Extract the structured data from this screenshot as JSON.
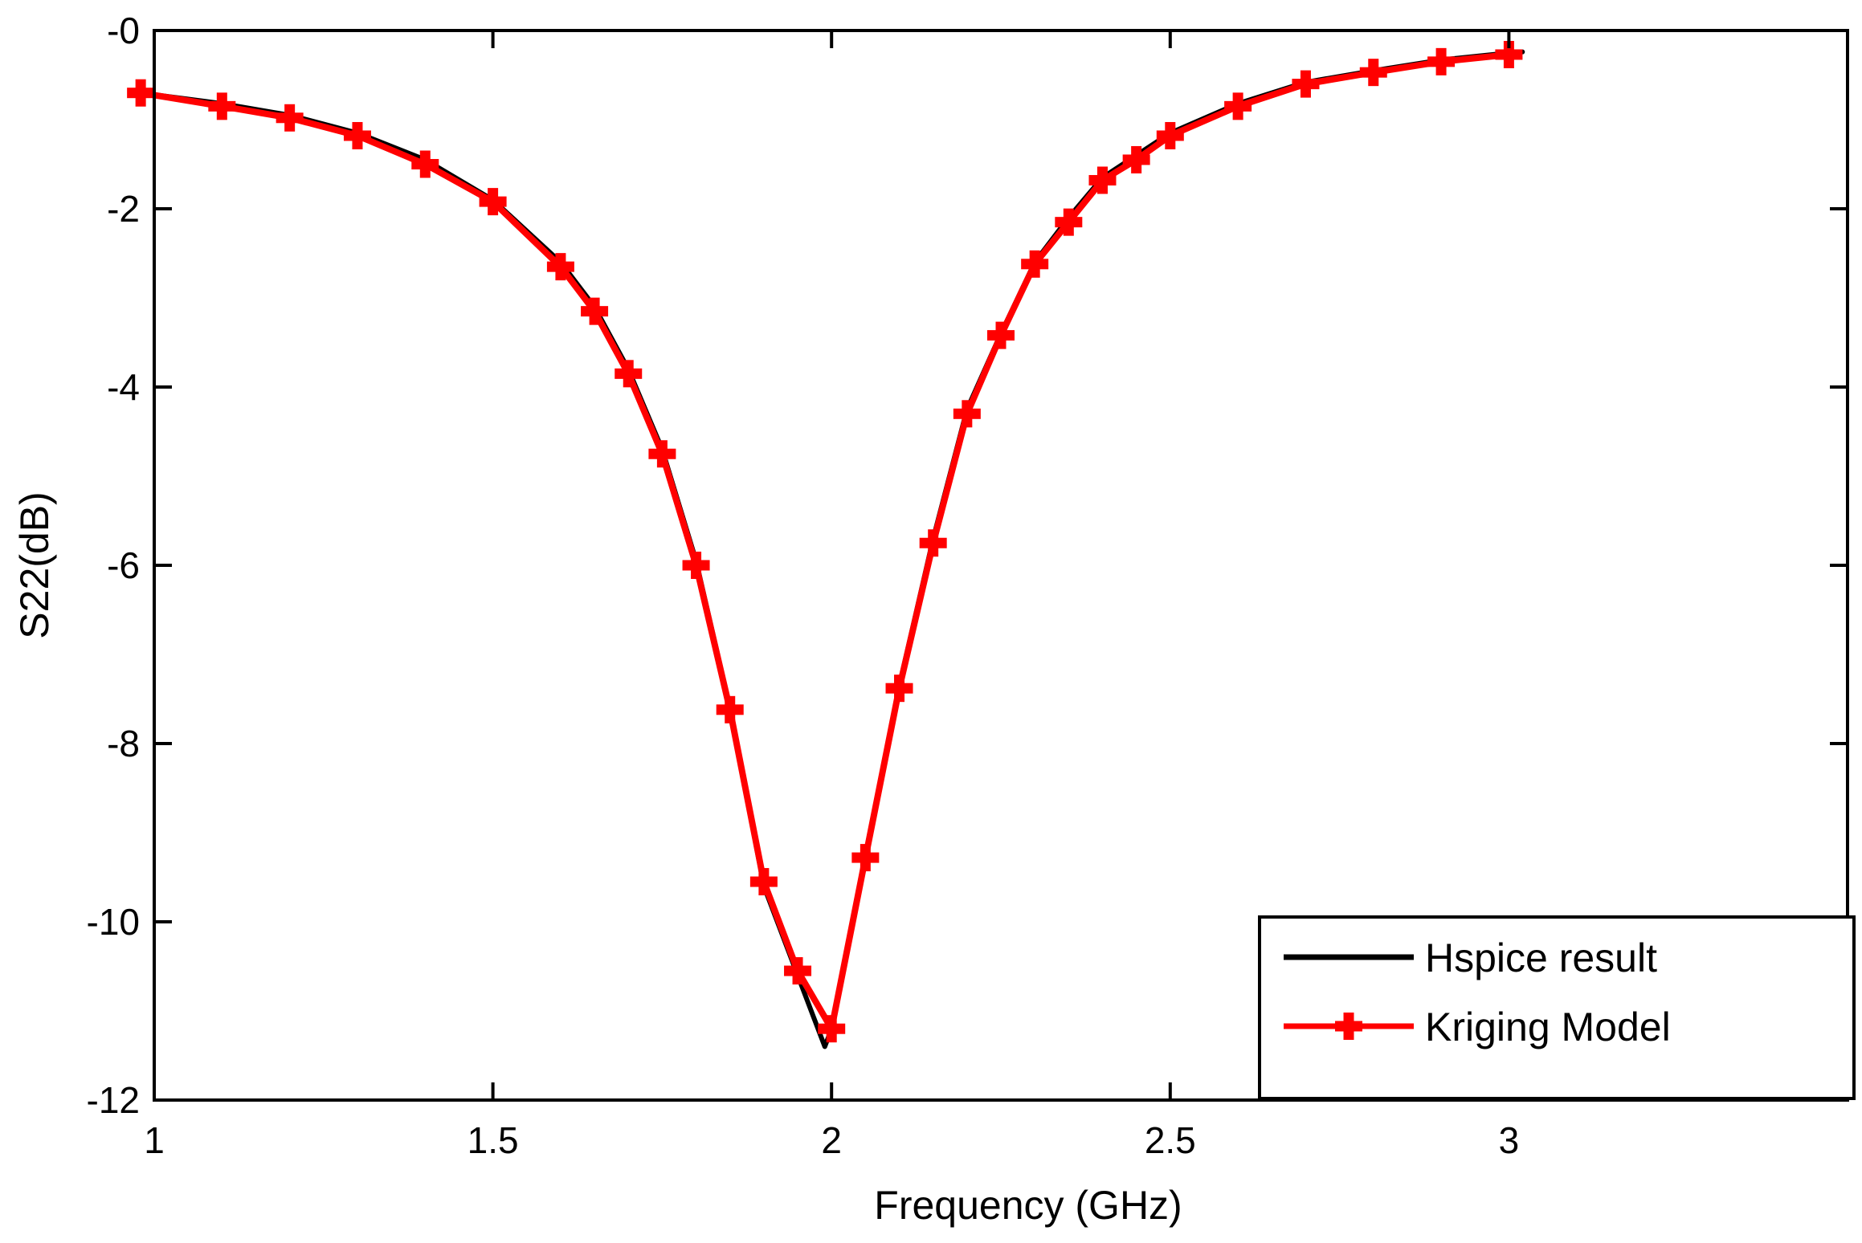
{
  "chart_data": {
    "type": "line",
    "title": "",
    "xlabel": "Frequency (GHz)",
    "ylabel": "S22(dB)",
    "xlim": [
      1,
      3.5
    ],
    "ylim": [
      -12,
      0
    ],
    "xticks": [
      1,
      1.5,
      2,
      2.5,
      3
    ],
    "xtick_labels": [
      "1",
      "1.5",
      "2",
      "2.5",
      "3"
    ],
    "yticks": [
      0,
      -2,
      -4,
      -6,
      -8,
      -10,
      -12
    ],
    "ytick_labels": [
      "-0",
      "-2",
      "-4",
      "-6",
      "-8",
      "-10",
      "-12"
    ],
    "grid": false,
    "legend_position": "bottom-right",
    "series": [
      {
        "name": "Hspice result",
        "color": "#000000",
        "marker": "none",
        "x": [
          0.98,
          1.1,
          1.2,
          1.3,
          1.4,
          1.5,
          1.6,
          1.65,
          1.7,
          1.75,
          1.8,
          1.85,
          1.9,
          1.95,
          1.99,
          2.0,
          2.05,
          2.1,
          2.15,
          2.2,
          2.25,
          2.3,
          2.35,
          2.4,
          2.45,
          2.5,
          2.6,
          2.7,
          2.8,
          2.9,
          3.0,
          3.02
        ],
        "y": [
          -0.7,
          -0.82,
          -0.95,
          -1.15,
          -1.45,
          -1.9,
          -2.6,
          -3.1,
          -3.8,
          -4.7,
          -5.95,
          -7.6,
          -9.6,
          -10.6,
          -11.4,
          -11.2,
          -9.25,
          -7.35,
          -5.7,
          -4.25,
          -3.4,
          -2.6,
          -2.1,
          -1.65,
          -1.4,
          -1.15,
          -0.82,
          -0.58,
          -0.45,
          -0.33,
          -0.25,
          -0.24
        ]
      },
      {
        "name": "Kriging Model",
        "color": "#ff0000",
        "marker": "plus",
        "x": [
          0.98,
          1.1,
          1.2,
          1.3,
          1.4,
          1.5,
          1.6,
          1.65,
          1.7,
          1.75,
          1.8,
          1.85,
          1.9,
          1.95,
          2.0,
          2.05,
          2.1,
          2.15,
          2.2,
          2.25,
          2.3,
          2.35,
          2.4,
          2.45,
          2.5,
          2.6,
          2.7,
          2.8,
          2.9,
          3.0
        ],
        "y": [
          -0.7,
          -0.85,
          -0.98,
          -1.18,
          -1.5,
          -1.92,
          -2.65,
          -3.15,
          -3.85,
          -4.75,
          -6.0,
          -7.62,
          -9.55,
          -10.55,
          -11.2,
          -9.28,
          -7.38,
          -5.75,
          -4.3,
          -3.42,
          -2.62,
          -2.15,
          -1.68,
          -1.45,
          -1.18,
          -0.85,
          -0.6,
          -0.47,
          -0.35,
          -0.27
        ]
      }
    ]
  }
}
